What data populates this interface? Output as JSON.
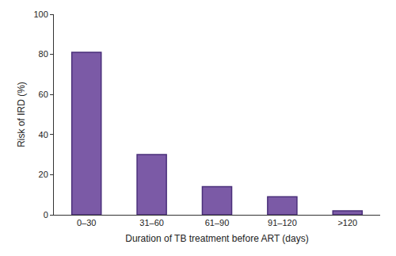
{
  "chart_data": {
    "type": "bar",
    "x_label": "Duration of TB treatment before ART (days)",
    "y_label": "Risk of IRD (%)",
    "categories": [
      "0–30",
      "31–60",
      "61–90",
      "91–120",
      ">120"
    ],
    "values": [
      81,
      30,
      14,
      9,
      2
    ],
    "color": "#7b5aa6",
    "ylim": [
      0,
      100
    ],
    "yticks": [
      0,
      20,
      40,
      60,
      80,
      100
    ],
    "grid": false
  }
}
